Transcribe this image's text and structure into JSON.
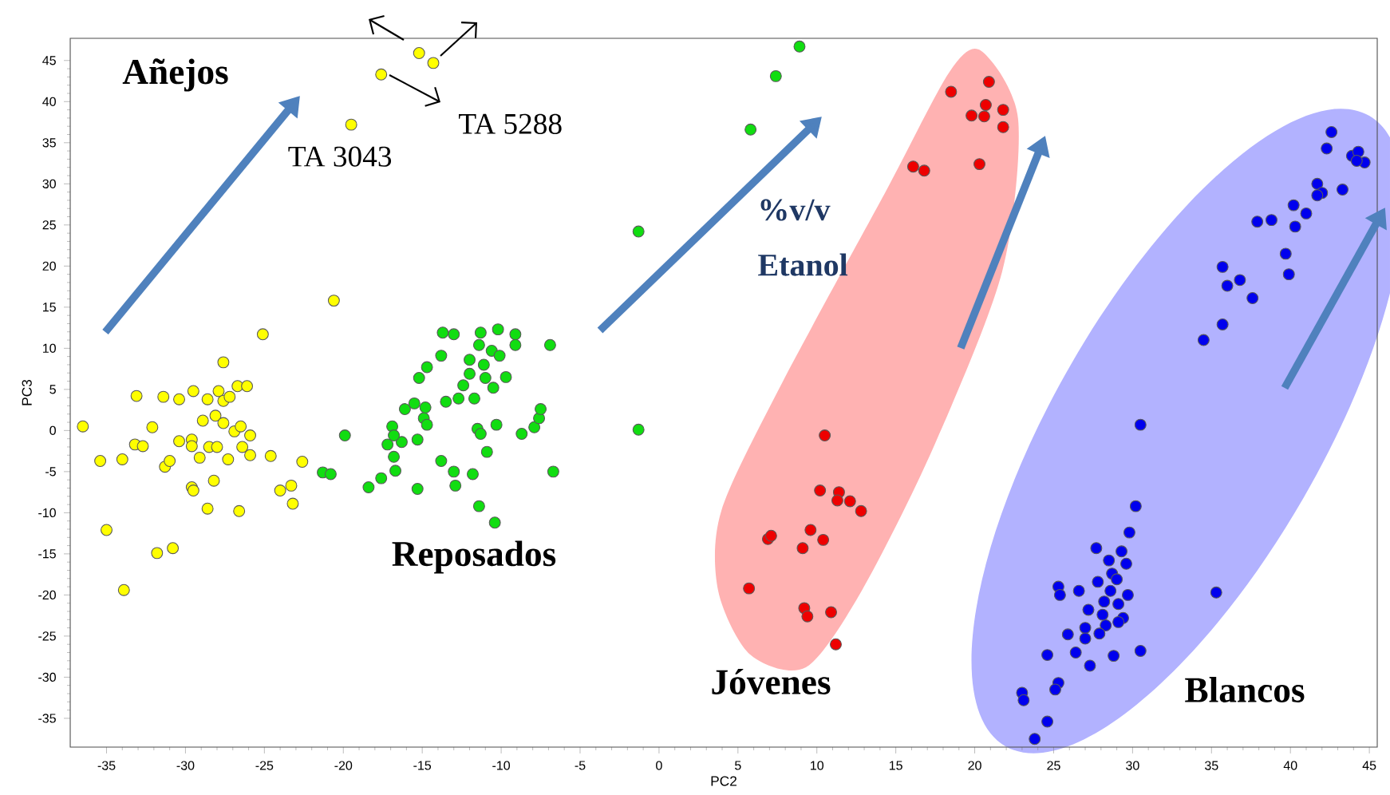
{
  "chart_data": {
    "type": "scatter",
    "xlabel": "PC2",
    "ylabel": "PC3",
    "xlim": [
      -37.3,
      45.5
    ],
    "ylim": [
      -38.5,
      47.7
    ],
    "xticks": [
      -35,
      -30,
      -25,
      -20,
      -15,
      -10,
      -5,
      0,
      5,
      10,
      15,
      20,
      25,
      30,
      35,
      40,
      45
    ],
    "yticks": [
      -35,
      -30,
      -25,
      -20,
      -15,
      -10,
      -5,
      0,
      5,
      10,
      15,
      20,
      25,
      30,
      35,
      40,
      45
    ],
    "marker": "circle",
    "series": [
      {
        "color": "#ffff00",
        "x": [
          -36.5,
          -35.4,
          -35.0,
          -33.9,
          -34.0,
          -33.2,
          -32.7,
          -33.1,
          -32.1,
          -31.8,
          -30.8,
          -31.4,
          -30.4,
          -31.3,
          -31.0,
          -30.4,
          -29.5,
          -29.6,
          -29.6,
          -29.1,
          -28.9,
          -28.6,
          -28.5,
          -28.1,
          -27.9,
          -28.0,
          -27.6,
          -27.6,
          -27.2,
          -27.6,
          -26.9,
          -26.7,
          -26.1,
          -26.5,
          -26.4,
          -25.9,
          -25.9,
          -27.3,
          -28.2,
          -29.6,
          -29.5,
          -28.6,
          -26.6,
          -24.6,
          -25.1,
          -24.0,
          -23.3,
          -23.2,
          -22.6,
          -20.6,
          -19.5,
          -17.6,
          -15.2,
          -14.3
        ],
        "values": [
          0.5,
          -3.7,
          -12.1,
          -19.4,
          -3.5,
          -1.7,
          -1.9,
          4.2,
          0.4,
          -14.9,
          -14.3,
          4.1,
          3.8,
          -4.4,
          -3.7,
          -1.3,
          4.8,
          -1.1,
          -1.9,
          -3.3,
          1.2,
          3.8,
          -2.0,
          1.8,
          4.8,
          -2.0,
          8.3,
          3.6,
          4.1,
          0.9,
          -0.1,
          5.4,
          5.4,
          0.5,
          -2.0,
          -0.6,
          -3.0,
          -3.5,
          -6.1,
          -6.9,
          -7.3,
          -9.5,
          -9.8,
          -3.1,
          11.7,
          -7.3,
          -6.7,
          -8.9,
          -3.8,
          15.8,
          37.2,
          43.3,
          45.9,
          44.7
        ]
      },
      {
        "color": "#11dd11",
        "x": [
          -21.3,
          -20.8,
          -19.9,
          -18.4,
          -17.6,
          -16.7,
          -15.3,
          -16.8,
          -17.2,
          -16.9,
          -16.3,
          -16.8,
          -16.1,
          -15.5,
          -15.3,
          -14.9,
          -14.8,
          -14.7,
          -15.2,
          -14.7,
          -13.8,
          -13.7,
          -13.0,
          -13.5,
          -12.7,
          -12.4,
          -11.7,
          -12.0,
          -12.0,
          -11.4,
          -11.3,
          -11.1,
          -11.0,
          -10.6,
          -10.2,
          -10.1,
          -10.5,
          -9.7,
          -9.1,
          -9.1,
          -6.9,
          -11.5,
          -11.3,
          -10.3,
          -10.9,
          -13.8,
          -13.0,
          -11.8,
          -12.9,
          -11.4,
          -10.4,
          -8.7,
          -7.9,
          -7.6,
          -7.5,
          -6.7,
          8.9,
          7.4,
          5.8,
          -1.3,
          -1.3
        ],
        "values": [
          -5.1,
          -5.3,
          -0.6,
          -6.9,
          -5.8,
          -4.9,
          -7.1,
          -3.2,
          -1.7,
          0.5,
          -1.4,
          -0.6,
          2.6,
          3.3,
          -1.1,
          1.5,
          2.8,
          0.7,
          6.4,
          7.7,
          9.1,
          11.9,
          11.7,
          3.5,
          3.9,
          5.5,
          3.9,
          6.9,
          8.6,
          10.4,
          11.9,
          8.0,
          6.4,
          9.7,
          12.3,
          9.1,
          5.2,
          6.5,
          11.7,
          10.4,
          10.4,
          0.2,
          -0.4,
          0.7,
          -2.6,
          -3.7,
          -5.0,
          -5.3,
          -6.7,
          -9.2,
          -11.2,
          -0.4,
          0.4,
          1.5,
          2.6,
          -5.0,
          46.7,
          43.1,
          36.6,
          24.2,
          0.1
        ]
      },
      {
        "color": "#ee0000",
        "x": [
          18.5,
          20.9,
          20.7,
          19.8,
          20.6,
          21.8,
          21.8,
          20.3,
          16.1,
          16.8,
          10.5,
          10.2,
          11.4,
          11.3,
          12.1,
          12.8,
          9.6,
          10.4,
          6.9,
          7.1,
          9.1,
          5.7,
          9.2,
          9.4,
          10.9,
          11.2
        ],
        "values": [
          41.2,
          42.4,
          39.6,
          38.3,
          38.2,
          39.0,
          36.9,
          32.4,
          32.1,
          31.6,
          -0.6,
          -7.3,
          -7.5,
          -8.5,
          -8.6,
          -9.8,
          -12.1,
          -13.3,
          -13.2,
          -12.8,
          -14.3,
          -19.2,
          -21.6,
          -22.6,
          -22.1,
          -26.0
        ]
      },
      {
        "color": "#0000ee",
        "x": [
          42.6,
          42.3,
          43.9,
          44.3,
          44.7,
          44.2,
          41.7,
          42.0,
          41.7,
          43.3,
          40.2,
          41.0,
          40.3,
          37.9,
          38.8,
          39.7,
          39.9,
          35.7,
          36.0,
          36.8,
          37.6,
          35.7,
          34.5,
          30.5,
          30.2,
          29.8,
          27.7,
          29.3,
          28.5,
          29.6,
          28.7,
          27.8,
          29.0,
          25.3,
          25.4,
          26.6,
          28.6,
          29.7,
          28.2,
          29.1,
          27.2,
          28.1,
          29.4,
          29.1,
          28.3,
          27.0,
          25.9,
          27.0,
          27.9,
          26.4,
          24.6,
          28.8,
          30.5,
          27.3,
          35.3,
          25.3,
          25.1,
          23.0,
          23.1,
          24.6,
          23.8
        ],
        "values": [
          36.3,
          34.3,
          33.4,
          33.9,
          32.6,
          32.8,
          30.0,
          28.9,
          28.6,
          29.3,
          27.4,
          26.4,
          24.8,
          25.4,
          25.6,
          21.5,
          19.0,
          19.9,
          17.6,
          18.3,
          16.1,
          12.9,
          11.0,
          0.7,
          -9.2,
          -12.4,
          -14.3,
          -14.7,
          -15.8,
          -16.2,
          -17.4,
          -18.4,
          -18.1,
          -19.0,
          -20.0,
          -19.5,
          -19.5,
          -20.0,
          -20.8,
          -21.1,
          -21.8,
          -22.4,
          -22.8,
          -23.3,
          -23.7,
          -24.0,
          -24.8,
          -25.3,
          -24.7,
          -27.0,
          -27.3,
          -27.4,
          -26.8,
          -28.6,
          -19.7,
          -30.7,
          -31.5,
          -31.9,
          -32.8,
          -35.4,
          -37.5
        ]
      }
    ],
    "annotations": [
      "Añejos",
      "Reposados",
      "Jóvenes",
      "Blancos",
      "%v/v Etanol",
      {
        "text": "TA 3043",
        "x": -19.5,
        "y": 37.2
      },
      {
        "text": "TA 5288",
        "x": -17.6,
        "y": 43.3
      }
    ]
  }
}
